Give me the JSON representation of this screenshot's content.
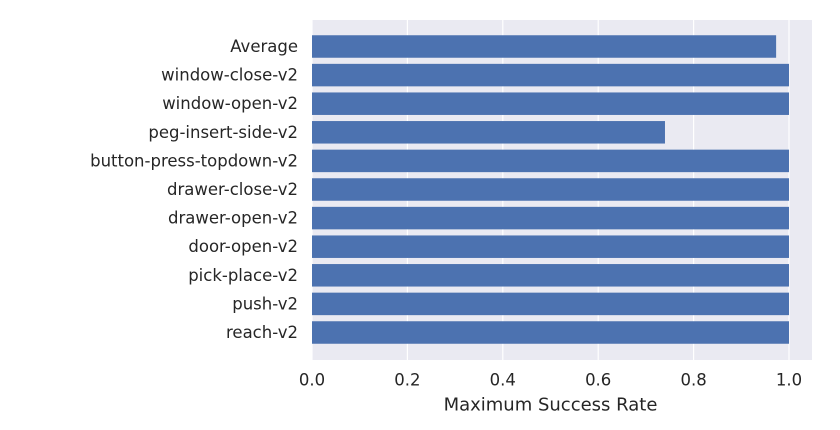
{
  "chart_data": {
    "type": "bar",
    "orientation": "horizontal",
    "categories": [
      "Average",
      "window-close-v2",
      "window-open-v2",
      "peg-insert-side-v2",
      "button-press-topdown-v2",
      "drawer-close-v2",
      "drawer-open-v2",
      "door-open-v2",
      "pick-place-v2",
      "push-v2",
      "reach-v2"
    ],
    "values": [
      0.973,
      1.0,
      1.0,
      0.74,
      1.0,
      1.0,
      1.0,
      1.0,
      1.0,
      1.0,
      1.0
    ],
    "title": "",
    "xlabel": "Maximum Success Rate",
    "ylabel": "",
    "xlim": [
      0.0,
      1.0
    ],
    "xticks": [
      "0.0",
      "0.2",
      "0.4",
      "0.6",
      "0.8",
      "1.0"
    ],
    "grid": true,
    "style": "seaborn-darkgrid",
    "colors": {
      "bar": "#4c72b0",
      "plot_background": "#eaeaf2",
      "grid": "#ffffff"
    }
  }
}
